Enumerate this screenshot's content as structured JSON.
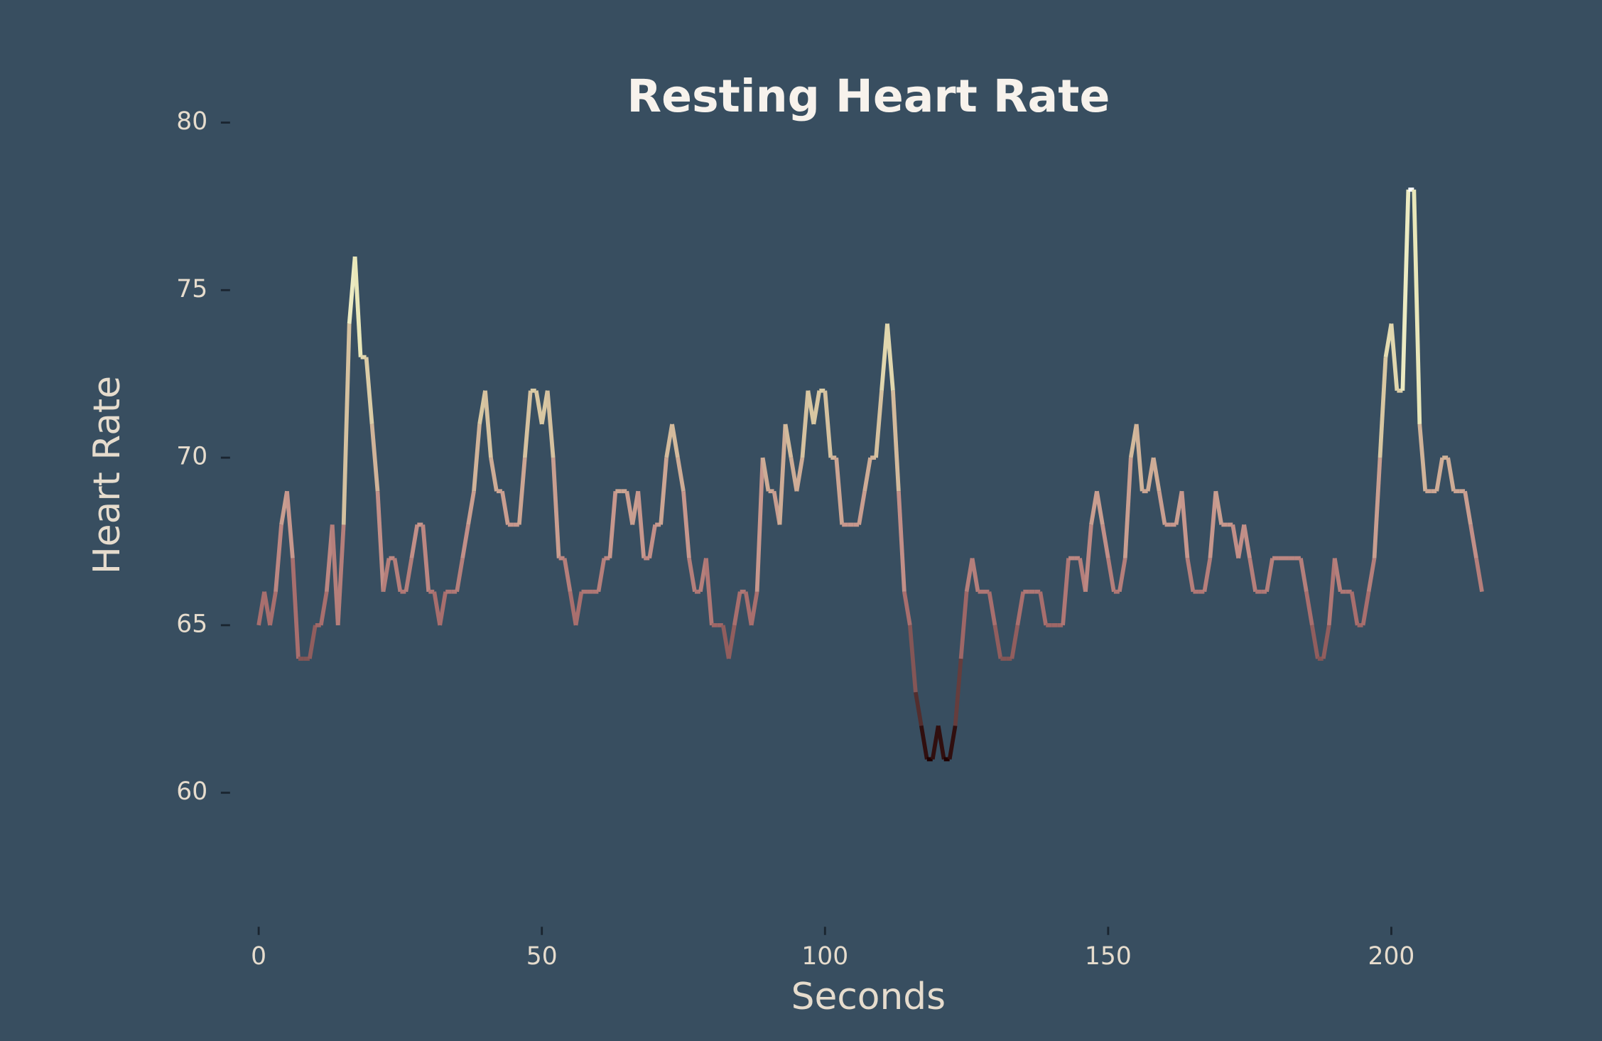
{
  "chart_data": {
    "type": "line",
    "title": "Resting Heart Rate",
    "xlabel": "Seconds",
    "ylabel": "Heart Rate",
    "colormap": "pink",
    "x": [
      0,
      1,
      2,
      3,
      4,
      5,
      6,
      7,
      8,
      9,
      10,
      11,
      12,
      13,
      14,
      15,
      16,
      17,
      18,
      19,
      20,
      21,
      22,
      23,
      24,
      25,
      26,
      27,
      28,
      29,
      30,
      31,
      32,
      33,
      34,
      35,
      36,
      37,
      38,
      39,
      40,
      41,
      42,
      43,
      44,
      45,
      46,
      47,
      48,
      49,
      50,
      51,
      52,
      53,
      54,
      55,
      56,
      57,
      58,
      59,
      60,
      61,
      62,
      63,
      64,
      65,
      66,
      67,
      68,
      69,
      70,
      71,
      72,
      73,
      74,
      75,
      76,
      77,
      78,
      79,
      80,
      81,
      82,
      83,
      84,
      85,
      86,
      87,
      88,
      89,
      90,
      91,
      92,
      93,
      94,
      95,
      96,
      97,
      98,
      99,
      100,
      101,
      102,
      103,
      104,
      105,
      106,
      107,
      108,
      109,
      110,
      111,
      112,
      113,
      114,
      115,
      116,
      117,
      118,
      119,
      120,
      121,
      122,
      123,
      124,
      125,
      126,
      127,
      128,
      129,
      130,
      131,
      132,
      133,
      134,
      135,
      136,
      137,
      138,
      139,
      140,
      141,
      142,
      143,
      144,
      145,
      146,
      147,
      148,
      149,
      150,
      151,
      152,
      153,
      154,
      155,
      156,
      157,
      158,
      159,
      160,
      161,
      162,
      163,
      164,
      165,
      166,
      167,
      168,
      169,
      170,
      171,
      172,
      173,
      174,
      175,
      176,
      177,
      178,
      179,
      180,
      181,
      182,
      183,
      184,
      185,
      186,
      187,
      188,
      189,
      190,
      191,
      192,
      193,
      194,
      195,
      196,
      197,
      198,
      199,
      200,
      201,
      202,
      203,
      204,
      205,
      206,
      207,
      208,
      209,
      210,
      211,
      212,
      213,
      214,
      215,
      216
    ],
    "values": [
      65,
      66,
      65,
      66,
      68,
      69,
      67,
      64,
      64,
      64,
      65,
      65,
      66,
      68,
      65,
      68,
      74,
      76,
      73,
      73,
      71,
      69,
      66,
      67,
      67,
      66,
      66,
      67,
      68,
      68,
      66,
      66,
      65,
      66,
      66,
      66,
      67,
      68,
      69,
      71,
      72,
      70,
      69,
      69,
      68,
      68,
      68,
      70,
      72,
      72,
      71,
      72,
      70,
      67,
      67,
      66,
      65,
      66,
      66,
      66,
      66,
      67,
      67,
      69,
      69,
      69,
      68,
      69,
      67,
      67,
      68,
      68,
      70,
      71,
      70,
      69,
      67,
      66,
      66,
      67,
      65,
      65,
      65,
      64,
      65,
      66,
      66,
      65,
      66,
      70,
      69,
      69,
      68,
      71,
      70,
      69,
      70,
      72,
      71,
      72,
      72,
      70,
      70,
      68,
      68,
      68,
      68,
      69,
      70,
      70,
      72,
      74,
      72,
      69,
      66,
      65,
      63,
      62,
      61,
      61,
      62,
      61,
      61,
      62,
      64,
      66,
      67,
      66,
      66,
      66,
      65,
      64,
      64,
      64,
      65,
      66,
      66,
      66,
      66,
      65,
      65,
      65,
      65,
      67,
      67,
      67,
      66,
      68,
      69,
      68,
      67,
      66,
      66,
      67,
      70,
      71,
      69,
      69,
      70,
      69,
      68,
      68,
      68,
      69,
      67,
      66,
      66,
      66,
      67,
      69,
      68,
      68,
      68,
      67,
      68,
      67,
      66,
      66,
      66,
      67,
      67,
      67,
      67,
      67,
      67,
      66,
      65,
      64,
      64,
      65,
      67,
      66,
      66,
      66,
      65,
      65,
      66,
      67,
      70,
      73,
      74,
      72,
      72,
      78,
      78,
      71,
      69,
      69,
      69,
      70,
      70,
      69,
      69,
      69,
      68,
      67,
      66
    ],
    "xlim": [
      -5,
      225
    ],
    "xticks": [
      0,
      50,
      100,
      150,
      200
    ],
    "ylim": [
      56,
      81
    ],
    "yticks": [
      60,
      65,
      70,
      75,
      80
    ]
  }
}
